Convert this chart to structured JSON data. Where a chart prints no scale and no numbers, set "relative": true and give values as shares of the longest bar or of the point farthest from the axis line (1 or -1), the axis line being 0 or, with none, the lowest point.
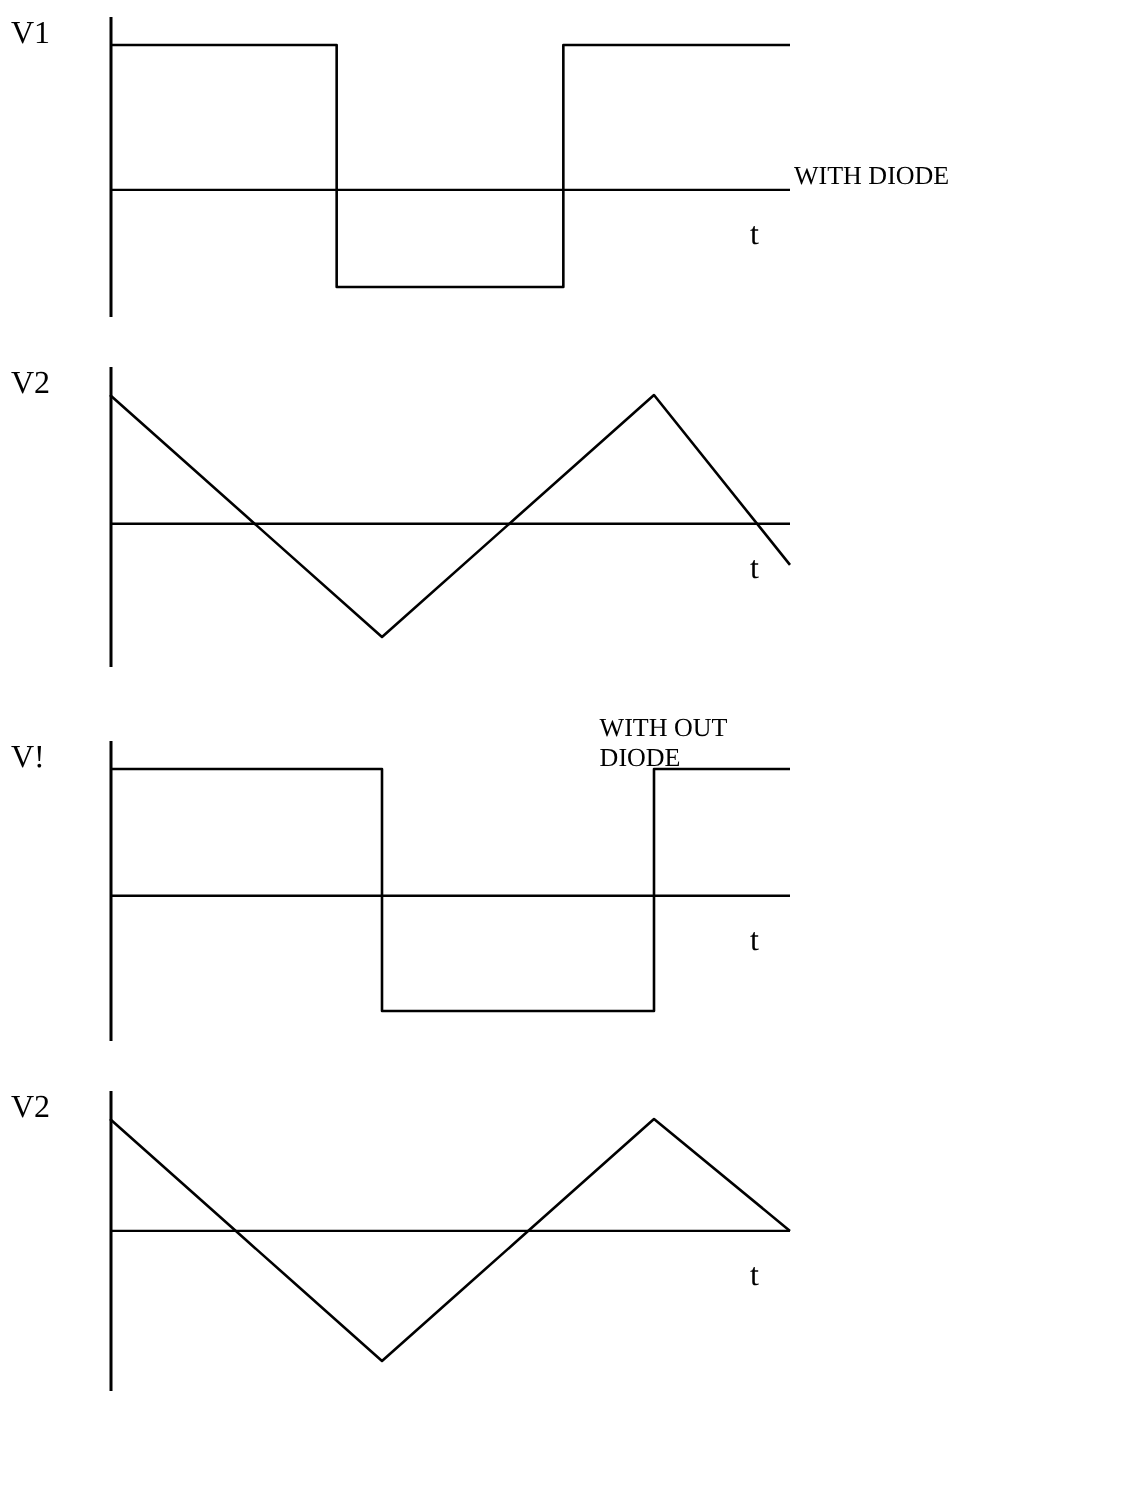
{
  "chart_data": [
    {
      "type": "step",
      "relative": true,
      "ylabel": "V1",
      "xlabel": "t",
      "categories": [
        null,
        null,
        null,
        null
      ],
      "annotations": [
        "WITH DIODE"
      ],
      "grid": false,
      "marker": "none",
      "line_style": "solid",
      "series": [
        {
          "color": "#000000",
          "values": [
            1,
            -0.67,
            1,
            1
          ]
        }
      ]
    },
    {
      "type": "line",
      "relative": true,
      "ylabel": "V2",
      "xlabel": "t",
      "categories": [
        null,
        null,
        null,
        null,
        null,
        null
      ],
      "grid": false,
      "marker": "none",
      "line_style": "solid",
      "series": [
        {
          "color": "#000000",
          "values": [
            1,
            0.06,
            -0.88,
            0.06,
            1,
            -0.32
          ]
        }
      ]
    },
    {
      "type": "step",
      "relative": true,
      "ylabel": "V!",
      "xlabel": "t",
      "categories": [
        null,
        null,
        null,
        null,
        null,
        null
      ],
      "annotations": [
        "WITH OUT\nDIODE"
      ],
      "grid": false,
      "marker": "none",
      "line_style": "solid",
      "series": [
        {
          "color": "#000000",
          "values": [
            1,
            1,
            -0.91,
            -0.91,
            1,
            1
          ]
        }
      ]
    },
    {
      "type": "line",
      "relative": true,
      "ylabel": "V2",
      "xlabel": "t",
      "categories": [
        null,
        null,
        null,
        null,
        null,
        null
      ],
      "grid": false,
      "marker": "none",
      "line_style": "solid",
      "series": [
        {
          "color": "#000000",
          "values": [
            0.86,
            -0.07,
            -1,
            -0.07,
            0.86,
            0
          ]
        }
      ]
    }
  ]
}
